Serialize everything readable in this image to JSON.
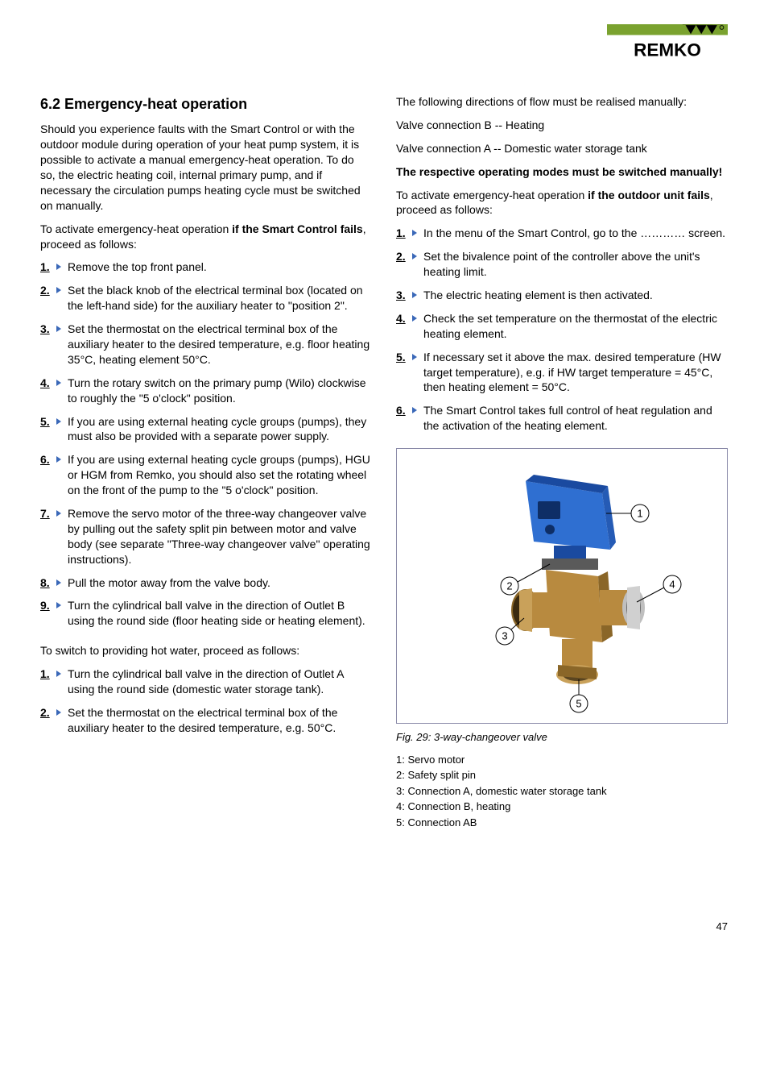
{
  "logo": {
    "brand": "REMKO",
    "bar_color": "#7aa22f",
    "text_color": "#000000"
  },
  "heading": "6.2  Emergency-heat operation",
  "left": {
    "intro": "Should you experience faults with the Smart Control or with the outdoor module during operation of your heat pump system, it is possible to activate a manual emergency-heat operation. To do so, the electric heating coil, internal primary pump, and if necessary the circulation pumps heating cycle must be switched on manually.",
    "activate_lead": "To activate emergency-heat operation ",
    "activate_bold": "if the Smart Control fails",
    "activate_tail": ", proceed as follows:",
    "steps_a": [
      "Remove the top front panel.",
      "Set the black knob of the electrical terminal box (located on the left-hand side) for the auxiliary heater to \"position 2\".",
      "Set the thermostat on the electrical terminal box of the auxiliary heater to the desired temperature, e.g. floor heating 35°C, heating element 50°C.",
      "Turn the rotary switch on the primary pump (Wilo) clockwise to roughly the \"5 o'clock\" position.",
      "If you are using external heating cycle groups (pumps), they must also be provided with a separate power supply.",
      "If you are using external heating cycle groups (pumps), HGU or HGM from Remko, you should also set the rotating wheel on the front of the pump to the \"5 o'clock\" position.",
      "Remove the servo motor of the three-way changeover valve by pulling out the safety split pin between motor and valve body (see separate \"Three-way changeover valve\" operating instructions).",
      "Pull the motor away from the valve body.",
      "Turn the cylindrical ball valve in the direction of Outlet B using the round side (floor heating side or heating element)."
    ],
    "hotwater_lead": "To switch to providing hot water, proceed as follows:",
    "steps_b": [
      "Turn the cylindrical ball valve in the direction of Outlet A using the round side (domestic water storage tank).",
      "Set the thermostat on the electrical terminal box of the auxiliary heater to the desired temperature, e.g. 50°C."
    ]
  },
  "right": {
    "flow_lead": "The following directions of flow must be realised manually:",
    "flow_b": "Valve connection B -- Heating",
    "flow_a": "Valve connection A -- Domestic water storage tank",
    "modes_bold": "The respective operating modes must be switched manually!",
    "outdoor_lead": "To activate emergency-heat operation ",
    "outdoor_bold": "if the outdoor unit fails",
    "outdoor_tail": ", proceed as follows:",
    "steps": [
      "In the menu of the Smart Control, go to the ………… screen.",
      "Set the bivalence point of the controller above the unit's heating limit.",
      "The electric heating element is then activated.",
      "Check the set temperature on the thermostat of the electric heating element.",
      "If necessary set it above the max. desired temperature (HW target temperature), e.g. if HW target temperature = 45°C, then heating element = 50°C.",
      "The Smart Control takes full control of heat regulation and the activation of the heating element."
    ],
    "figure": {
      "caption": "Fig. 29: 3-way-changeover valve",
      "legend": [
        "1:   Servo motor",
        "2:   Safety split pin",
        "3:   Connection A, domestic water storage tank",
        "4:   Connection B, heating",
        "5:   Connection AB"
      ],
      "colors": {
        "motor_body": "#2f6fd1",
        "motor_top": "#1a4aa0",
        "valve_brass": "#b88a3f",
        "valve_brass_dark": "#8a6628",
        "port_silver": "#bfbfbf"
      }
    }
  },
  "page_number": "47"
}
